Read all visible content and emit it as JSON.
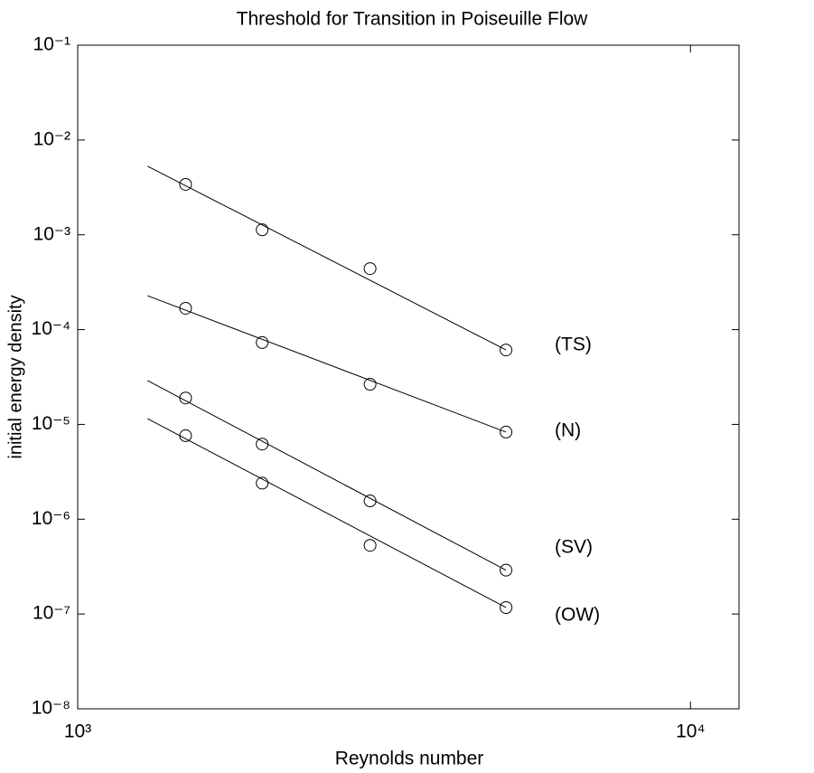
{
  "chart_data": {
    "type": "scatter",
    "title": "Threshold for Transition in Poiseuille Flow",
    "x_label": "Reynolds number",
    "y_label": "initial energy density",
    "x_scale": "log",
    "y_scale": "log",
    "xlim": [
      1000,
      12000
    ],
    "ylim": [
      1e-08,
      0.1
    ],
    "xticks": [
      {
        "value": 1000,
        "label": "10³"
      },
      {
        "value": 10000,
        "label": "10⁴"
      }
    ],
    "yticks": [
      {
        "value": 1e-08,
        "label": "10⁻⁸"
      },
      {
        "value": 1e-07,
        "label": "10⁻⁷"
      },
      {
        "value": 1e-06,
        "label": "10⁻⁶"
      },
      {
        "value": 1e-05,
        "label": "10⁻⁵"
      },
      {
        "value": 0.0001,
        "label": "10⁻⁴"
      },
      {
        "value": 0.001,
        "label": "10⁻³"
      },
      {
        "value": 0.01,
        "label": "10⁻²"
      },
      {
        "value": 0.1,
        "label": "10⁻¹"
      }
    ],
    "grid": false,
    "x": [
      1500,
      2000,
      3000,
      5000
    ],
    "series": [
      {
        "name": "(TS)",
        "color": "#000000",
        "values": [
          0.0034,
          0.00113,
          0.00044,
          6.1e-05
        ],
        "fit": {
          "x": [
            1300,
            5000
          ],
          "values": [
            0.0053,
            6.1e-05
          ]
        }
      },
      {
        "name": "(N)",
        "color": "#000000",
        "values": [
          0.000168,
          7.3e-05,
          2.65e-05,
          8.3e-06
        ],
        "fit": {
          "x": [
            1300,
            5000
          ],
          "values": [
            0.000228,
            8.3e-06
          ]
        }
      },
      {
        "name": "(SV)",
        "color": "#000000",
        "values": [
          1.9e-05,
          6.2e-06,
          1.56e-06,
          2.9e-07
        ],
        "fit": {
          "x": [
            1300,
            5000
          ],
          "values": [
            2.9e-05,
            2.9e-07
          ]
        }
      },
      {
        "name": "(OW)",
        "color": "#000000",
        "values": [
          7.6e-06,
          2.4e-06,
          5.3e-07,
          1.17e-07
        ],
        "fit": {
          "x": [
            1300,
            5000
          ],
          "values": [
            1.15e-05,
            1.17e-07
          ]
        }
      }
    ]
  }
}
